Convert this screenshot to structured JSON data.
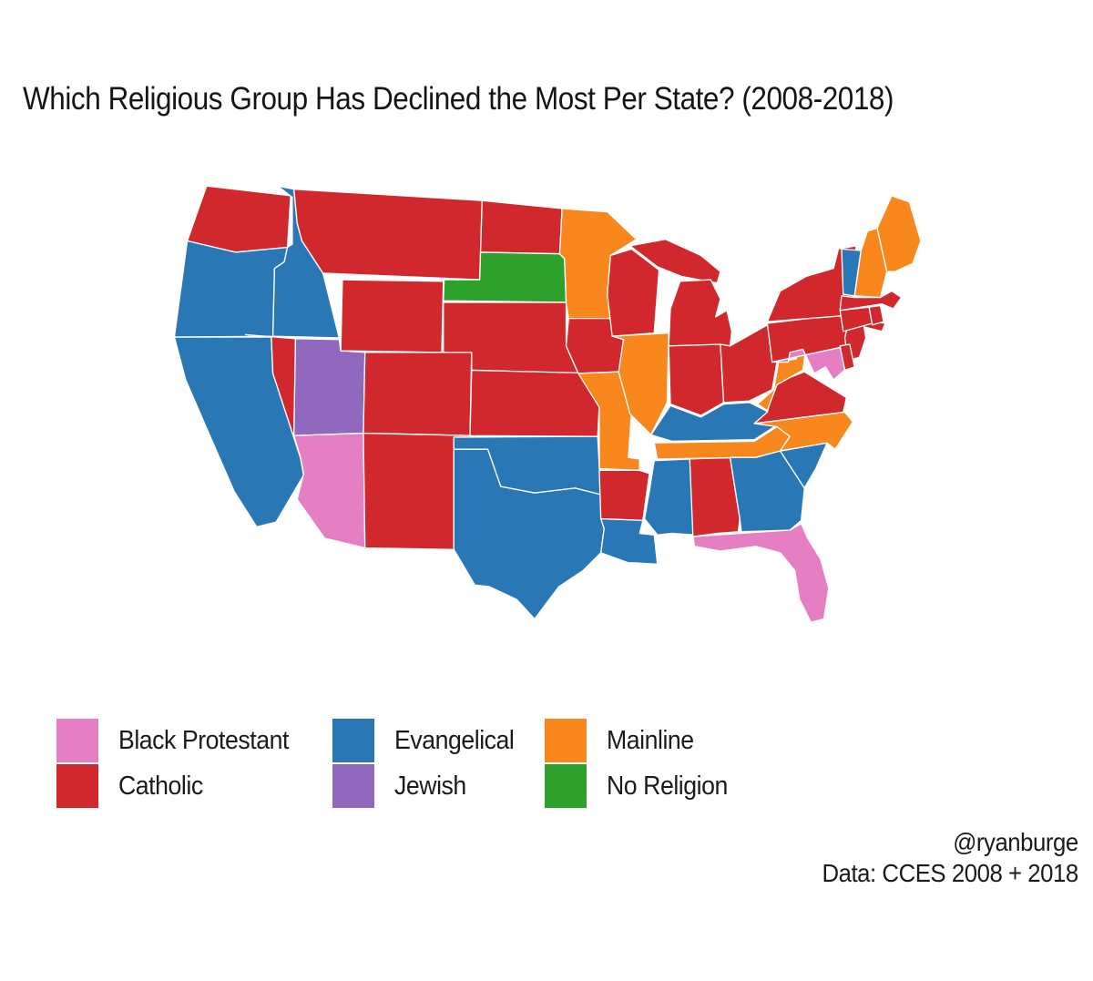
{
  "title": "Which Religious Group Has Declined the Most Per State? (2008-2018)",
  "legend": {
    "items": [
      {
        "label": "Black Protestant",
        "color": "#E67EC3"
      },
      {
        "label": "Catholic",
        "color": "#D0282D"
      },
      {
        "label": "Evangelical",
        "color": "#2978B5"
      },
      {
        "label": "Jewish",
        "color": "#9069BE"
      },
      {
        "label": "Mainline",
        "color": "#F8871D"
      },
      {
        "label": "No Religion",
        "color": "#2EA02C"
      }
    ]
  },
  "attribution": {
    "handle": "@ryanburge",
    "source": "Data: CCES 2008 + 2018"
  },
  "chart_data": {
    "type": "choropleth",
    "title": "Which Religious Group Has Declined the Most Per State? (2008-2018)",
    "geography": "United States (lower 48)",
    "legend_position": "bottom",
    "categories": [
      "Black Protestant",
      "Catholic",
      "Evangelical",
      "Jewish",
      "Mainline",
      "No Religion"
    ],
    "states": [
      {
        "abbr": "WA",
        "state": "Washington",
        "group": "Catholic"
      },
      {
        "abbr": "OR",
        "state": "Oregon",
        "group": "Evangelical"
      },
      {
        "abbr": "CA",
        "state": "California",
        "group": "Evangelical"
      },
      {
        "abbr": "ID",
        "state": "Idaho",
        "group": "Evangelical"
      },
      {
        "abbr": "MT",
        "state": "Montana",
        "group": "Catholic"
      },
      {
        "abbr": "NV",
        "state": "Nevada",
        "group": "Catholic"
      },
      {
        "abbr": "UT",
        "state": "Utah",
        "group": "Jewish"
      },
      {
        "abbr": "AZ",
        "state": "Arizona",
        "group": "Black Protestant"
      },
      {
        "abbr": "WY",
        "state": "Wyoming",
        "group": "Catholic"
      },
      {
        "abbr": "CO",
        "state": "Colorado",
        "group": "Catholic"
      },
      {
        "abbr": "NM",
        "state": "New Mexico",
        "group": "Catholic"
      },
      {
        "abbr": "ND",
        "state": "North Dakota",
        "group": "Catholic"
      },
      {
        "abbr": "SD",
        "state": "South Dakota",
        "group": "No Religion"
      },
      {
        "abbr": "NE",
        "state": "Nebraska",
        "group": "Catholic"
      },
      {
        "abbr": "KS",
        "state": "Kansas",
        "group": "Catholic"
      },
      {
        "abbr": "OK",
        "state": "Oklahoma",
        "group": "Evangelical"
      },
      {
        "abbr": "TX",
        "state": "Texas",
        "group": "Evangelical"
      },
      {
        "abbr": "MN",
        "state": "Minnesota",
        "group": "Mainline"
      },
      {
        "abbr": "IA",
        "state": "Iowa",
        "group": "Catholic"
      },
      {
        "abbr": "MO",
        "state": "Missouri",
        "group": "Mainline"
      },
      {
        "abbr": "AR",
        "state": "Arkansas",
        "group": "Catholic"
      },
      {
        "abbr": "LA",
        "state": "Louisiana",
        "group": "Evangelical"
      },
      {
        "abbr": "WI",
        "state": "Wisconsin",
        "group": "Catholic"
      },
      {
        "abbr": "IL",
        "state": "Illinois",
        "group": "Mainline"
      },
      {
        "abbr": "MS",
        "state": "Mississippi",
        "group": "Evangelical"
      },
      {
        "abbr": "AL",
        "state": "Alabama",
        "group": "Catholic"
      },
      {
        "abbr": "MI",
        "state": "Michigan",
        "group": "Catholic"
      },
      {
        "abbr": "IN",
        "state": "Indiana",
        "group": "Catholic"
      },
      {
        "abbr": "OH",
        "state": "Ohio",
        "group": "Catholic"
      },
      {
        "abbr": "KY",
        "state": "Kentucky",
        "group": "Evangelical"
      },
      {
        "abbr": "TN",
        "state": "Tennessee",
        "group": "Mainline"
      },
      {
        "abbr": "GA",
        "state": "Georgia",
        "group": "Evangelical"
      },
      {
        "abbr": "FL",
        "state": "Florida",
        "group": "Black Protestant"
      },
      {
        "abbr": "SC",
        "state": "South Carolina",
        "group": "Evangelical"
      },
      {
        "abbr": "NC",
        "state": "North Carolina",
        "group": "Mainline"
      },
      {
        "abbr": "VA",
        "state": "Virginia",
        "group": "Catholic"
      },
      {
        "abbr": "WV",
        "state": "West Virginia",
        "group": "Mainline"
      },
      {
        "abbr": "PA",
        "state": "Pennsylvania",
        "group": "Catholic"
      },
      {
        "abbr": "NY",
        "state": "New York",
        "group": "Catholic"
      },
      {
        "abbr": "NJ",
        "state": "New Jersey",
        "group": "Catholic"
      },
      {
        "abbr": "MD",
        "state": "Maryland",
        "group": "Black Protestant"
      },
      {
        "abbr": "DE",
        "state": "Delaware",
        "group": "Catholic"
      },
      {
        "abbr": "VT",
        "state": "Vermont",
        "group": "Evangelical"
      },
      {
        "abbr": "NH",
        "state": "New Hampshire",
        "group": "Mainline"
      },
      {
        "abbr": "ME",
        "state": "Maine",
        "group": "Mainline"
      },
      {
        "abbr": "MA",
        "state": "Massachusetts",
        "group": "Catholic"
      },
      {
        "abbr": "CT",
        "state": "Connecticut",
        "group": "Catholic"
      },
      {
        "abbr": "RI",
        "state": "Rhode Island",
        "group": "Catholic"
      }
    ]
  }
}
